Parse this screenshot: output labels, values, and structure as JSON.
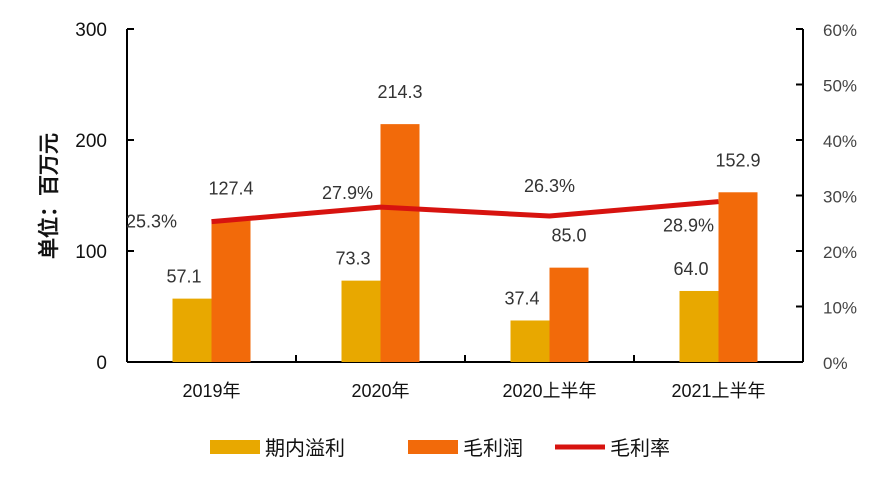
{
  "chart_data": {
    "type": "bar+line",
    "categories": [
      "2019年",
      "2020年",
      "2020上半年",
      "2021上半年"
    ],
    "ylabel": "单位：百万元",
    "ylim": [
      0,
      300
    ],
    "yticks": [
      "0",
      "100",
      "200",
      "300"
    ],
    "y2lim": [
      0,
      60
    ],
    "y2ticks": [
      "0%",
      "10%",
      "20%",
      "30%",
      "40%",
      "50%",
      "60%"
    ],
    "grid": false,
    "legend_position": "bottom",
    "series": [
      {
        "name": "期内溢利",
        "type": "bar",
        "axis": "left",
        "color": "#E8A800",
        "values": [
          57.1,
          73.3,
          37.4,
          64.0
        ],
        "labels": [
          "57.1",
          "73.3",
          "37.4",
          "64.0"
        ]
      },
      {
        "name": "毛利润",
        "type": "bar",
        "axis": "left",
        "color": "#F26A0A",
        "values": [
          127.4,
          214.3,
          85.0,
          152.9
        ],
        "labels": [
          "127.4",
          "214.3",
          "85.0",
          "152.9"
        ]
      },
      {
        "name": "毛利率",
        "type": "line",
        "axis": "right",
        "color": "#D7130F",
        "values": [
          25.3,
          27.9,
          26.3,
          28.9
        ],
        "labels": [
          "25.3%",
          "27.9%",
          "26.3%",
          "28.9%"
        ]
      }
    ]
  }
}
